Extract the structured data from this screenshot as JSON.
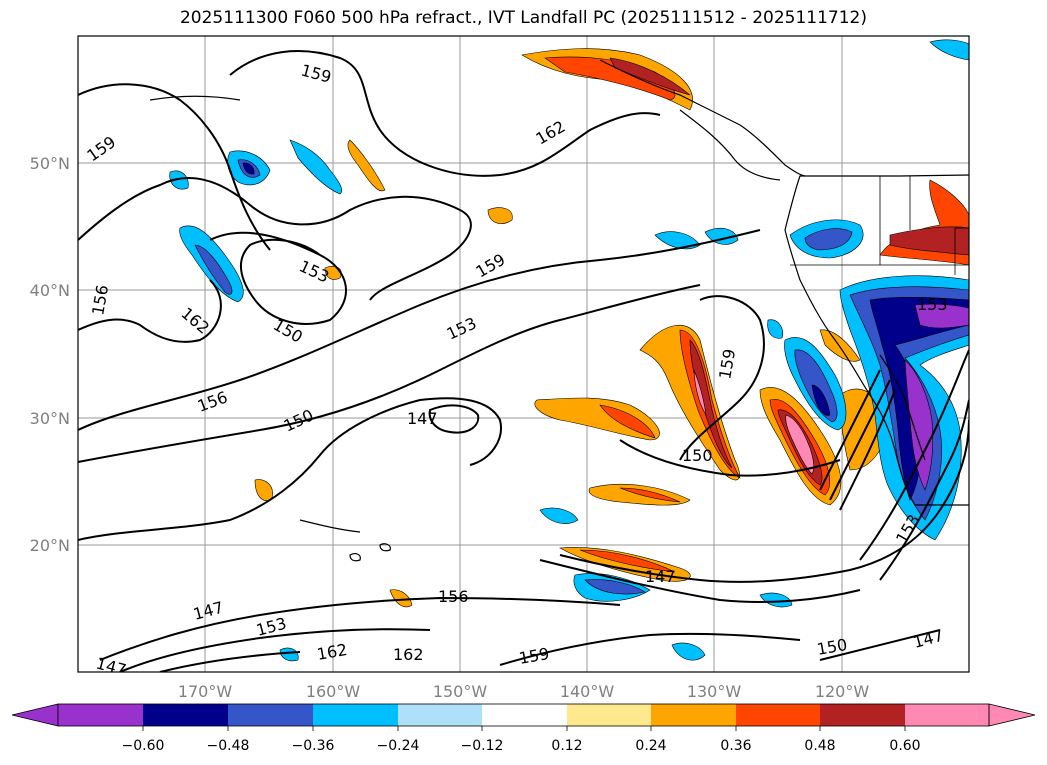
{
  "title": "2025111300 F060 500 hPa refract., IVT Landfall PC (2025111512 - 2025111712)",
  "map": {
    "lat_labels": [
      "50°N",
      "40°N",
      "30°N",
      "20°N"
    ],
    "lon_labels": [
      "170°W",
      "160°W",
      "150°W",
      "140°W",
      "130°W",
      "120°W"
    ],
    "contour_labels": [
      "159",
      "162",
      "159",
      "153",
      "159",
      "162",
      "150",
      "153",
      "156",
      "156",
      "150",
      "147",
      "150",
      "159",
      "153",
      "147",
      "153",
      "147",
      "156",
      "162",
      "162",
      "159",
      "150",
      "147",
      "147",
      "153"
    ]
  },
  "colorbar": {
    "ticks": [
      "−0.60",
      "−0.48",
      "−0.36",
      "−0.24",
      "−0.12",
      "0.12",
      "0.24",
      "0.36",
      "0.48",
      "0.60"
    ],
    "colors": [
      "#9932cc",
      "#00008b",
      "#3456c9",
      "#00bfff",
      "#aee0fa",
      "#ffffff",
      "#ffe98f",
      "#ffa500",
      "#ff4500",
      "#b22222",
      "#ff89b2"
    ]
  }
}
